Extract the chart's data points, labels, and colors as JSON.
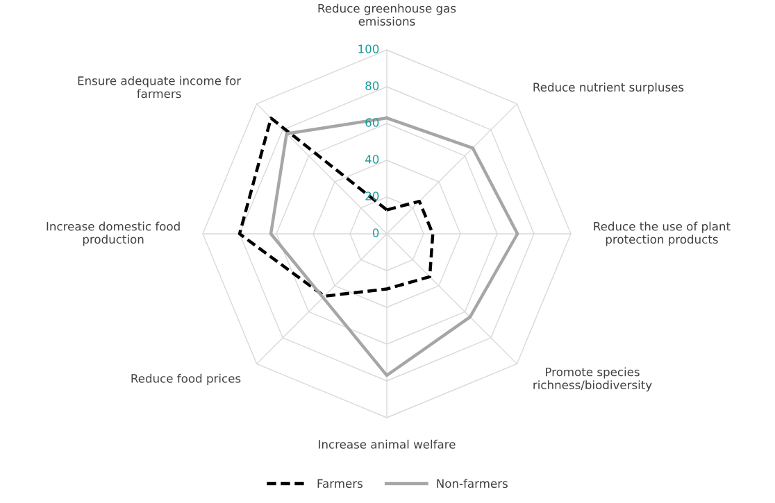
{
  "chart_data": {
    "type": "radar",
    "categories": [
      "Reduce greenhouse gas\nemissions",
      "Reduce nutrient surpluses",
      "Reduce the use of plant\nprotection products",
      "Promote species\nrichness/biodiversity",
      "Increase animal welfare",
      "Reduce food prices",
      "Increase domestic food\nproduction",
      "Ensure adequate income for\nfarmers"
    ],
    "series": [
      {
        "name": "Farmers",
        "color": "#000000",
        "line_style": "dashed",
        "values": [
          13,
          25,
          25,
          33,
          30,
          48,
          80,
          89
        ]
      },
      {
        "name": "Non-farmers",
        "color": "#a6a6a6",
        "line_style": "solid",
        "values": [
          63,
          66,
          71,
          64,
          77,
          49,
          63,
          77
        ]
      }
    ],
    "ylim": [
      0,
      100
    ],
    "yticks": [
      0,
      20,
      40,
      60,
      80,
      100
    ],
    "grid": true,
    "legend": "bottom",
    "marker": "none"
  }
}
